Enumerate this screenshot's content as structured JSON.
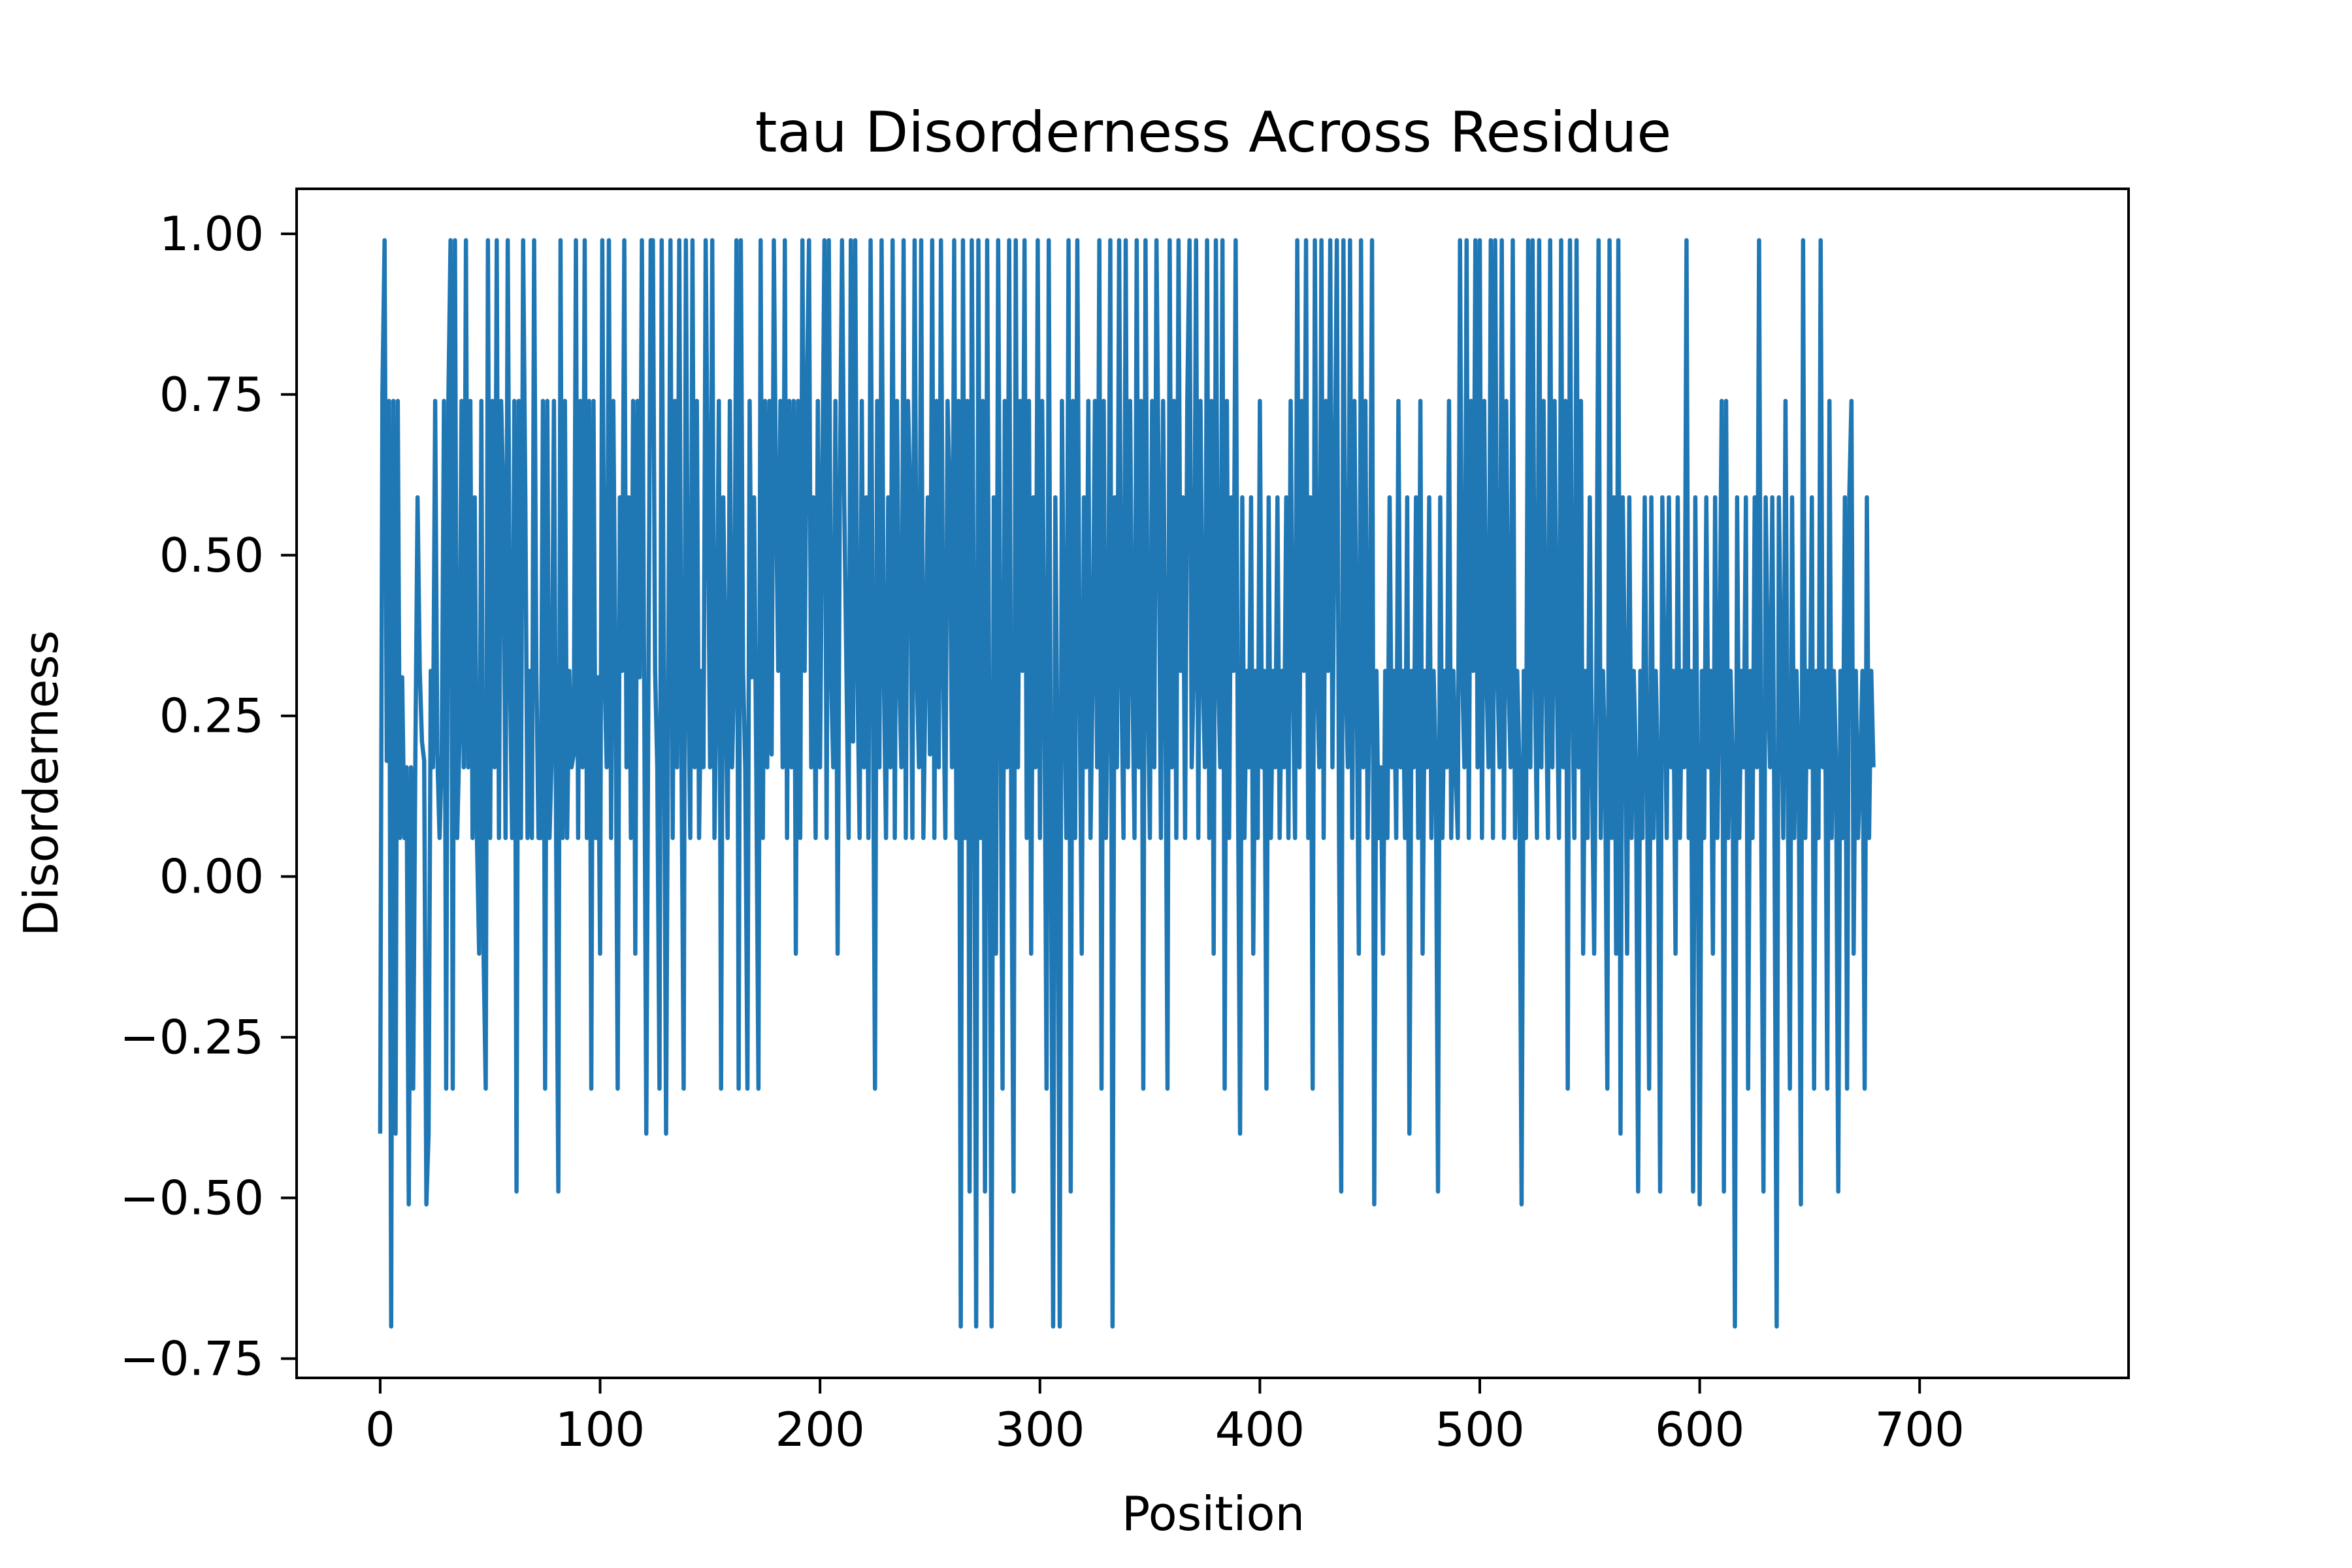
{
  "chart_data": {
    "type": "line",
    "title": "tau Disorderness Across Residue",
    "xlabel": "Position",
    "ylabel": "Disorderness",
    "xlim": [
      -38,
      795
    ],
    "ylim": [
      -0.78,
      1.07
    ],
    "xticks": [
      0,
      100,
      200,
      300,
      400,
      500,
      600,
      700
    ],
    "xtick_labels": [
      "0",
      "100",
      "200",
      "300",
      "400",
      "500",
      "600",
      "700"
    ],
    "yticks": [
      -0.75,
      -0.5,
      -0.25,
      0,
      0.25,
      0.5,
      0.75,
      1.0
    ],
    "ytick_labels": [
      "−0.75",
      "−0.50",
      "−0.25",
      "0.00",
      "0.25",
      "0.50",
      "0.75",
      "1.00"
    ],
    "grid": false,
    "legend": "none",
    "series_color": "#1f77b4",
    "series": [
      {
        "name": "",
        "x_start": 0,
        "x_step": 1,
        "values": [
          -0.4,
          0.75,
          0.99,
          0.18,
          0.74,
          -0.7,
          0.74,
          -0.4,
          0.74,
          0.06,
          0.31,
          0.06,
          0.17,
          -0.51,
          0.17,
          -0.33,
          0.19,
          0.59,
          0.32,
          0.21,
          0.18,
          -0.51,
          -0.4,
          0.32,
          0.17,
          0.74,
          0.19,
          0.06,
          0.19,
          0.74,
          -0.33,
          0.74,
          0.99,
          -0.33,
          0.99,
          0.06,
          0.21,
          0.74,
          0.17,
          0.99,
          0.17,
          0.74,
          0.06,
          0.59,
          0.06,
          -0.12,
          0.74,
          -0.12,
          -0.33,
          0.99,
          0.06,
          0.74,
          0.17,
          0.99,
          0.06,
          0.74,
          0.59,
          0.06,
          0.99,
          0.32,
          0.06,
          0.74,
          -0.49,
          0.74,
          0.06,
          0.99,
          0.59,
          0.06,
          0.32,
          0.06,
          0.99,
          0.32,
          0.06,
          0.06,
          0.74,
          -0.33,
          0.74,
          0.06,
          0.19,
          0.74,
          0.06,
          -0.49,
          0.99,
          0.06,
          0.74,
          0.06,
          0.32,
          0.17,
          0.19,
          0.99,
          0.06,
          0.74,
          0.17,
          0.99,
          0.06,
          0.74,
          -0.33,
          0.74,
          0.06,
          0.31,
          -0.12,
          0.99,
          0.32,
          0.17,
          0.99,
          0.06,
          0.74,
          0.32,
          -0.33,
          0.59,
          0.32,
          0.99,
          0.17,
          0.59,
          0.06,
          0.74,
          -0.12,
          0.74,
          0.31,
          0.99,
          0.32,
          -0.4,
          0.32,
          0.99,
          0.99,
          0.32,
          0.17,
          -0.33,
          0.99,
          0.32,
          -0.4,
          0.32,
          0.99,
          0.06,
          0.74,
          0.17,
          0.99,
          0.19,
          -0.33,
          0.99,
          0.32,
          0.06,
          0.99,
          0.17,
          0.74,
          0.06,
          0.32,
          0.17,
          0.99,
          0.59,
          0.17,
          0.99,
          0.06,
          0.32,
          0.74,
          -0.33,
          0.59,
          0.32,
          0.06,
          0.74,
          0.17,
          0.32,
          0.99,
          -0.33,
          0.99,
          0.32,
          0.17,
          -0.33,
          0.74,
          0.31,
          0.59,
          0.17,
          -0.33,
          0.99,
          0.06,
          0.74,
          0.17,
          0.74,
          0.19,
          0.99,
          0.59,
          0.32,
          0.74,
          0.17,
          0.99,
          0.06,
          0.74,
          0.17,
          0.74,
          -0.12,
          0.74,
          0.06,
          0.99,
          0.32,
          0.74,
          0.99,
          0.17,
          0.59,
          0.06,
          0.74,
          0.17,
          0.59,
          0.99,
          0.06,
          0.99,
          0.32,
          0.17,
          0.74,
          -0.12,
          0.59,
          0.99,
          0.59,
          0.32,
          0.06,
          0.99,
          0.21,
          0.99,
          0.32,
          0.06,
          0.74,
          0.17,
          0.59,
          0.06,
          0.99,
          0.32,
          -0.33,
          0.74,
          0.17,
          0.99,
          0.32,
          0.06,
          0.59,
          0.17,
          0.99,
          0.06,
          0.74,
          0.32,
          0.17,
          0.99,
          0.06,
          0.74,
          0.59,
          0.06,
          0.99,
          0.32,
          0.17,
          0.99,
          0.06,
          0.32,
          0.59,
          0.19,
          0.99,
          0.06,
          0.74,
          0.17,
          0.99,
          0.32,
          0.06,
          0.74,
          0.59,
          0.17,
          0.99,
          0.06,
          0.74,
          -0.7,
          0.99,
          0.06,
          0.74,
          -0.49,
          0.99,
          0.32,
          -0.7,
          0.99,
          0.06,
          0.74,
          -0.49,
          0.99,
          0.17,
          -0.7,
          0.59,
          -0.12,
          0.99,
          0.32,
          -0.33,
          0.74,
          0.17,
          0.99,
          0.06,
          -0.49,
          0.99,
          0.17,
          0.74,
          0.32,
          0.99,
          0.06,
          0.74,
          -0.12,
          0.59,
          0.17,
          0.99,
          0.06,
          0.74,
          0.32,
          -0.33,
          0.99,
          0.06,
          -0.7,
          0.59,
          0.17,
          -0.7,
          0.74,
          0.32,
          0.06,
          0.99,
          -0.49,
          0.74,
          0.06,
          0.99,
          0.32,
          -0.12,
          0.59,
          0.17,
          0.74,
          0.06,
          0.32,
          0.74,
          0.17,
          0.99,
          -0.33,
          0.74,
          0.06,
          0.32,
          0.99,
          -0.7,
          0.59,
          0.17,
          0.99,
          0.32,
          0.06,
          0.99,
          0.17,
          0.74,
          0.32,
          0.06,
          0.99,
          0.17,
          0.74,
          -0.33,
          0.99,
          0.32,
          0.06,
          0.74,
          0.17,
          0.99,
          0.59,
          0.06,
          0.74,
          0.32,
          -0.33,
          0.99,
          0.17,
          0.74,
          0.06,
          0.99,
          0.32,
          0.59,
          0.06,
          0.74,
          0.99,
          0.17,
          0.32,
          0.99,
          0.06,
          0.74,
          0.32,
          0.17,
          0.99,
          0.06,
          0.74,
          -0.12,
          0.99,
          0.32,
          0.17,
          0.99,
          -0.33,
          0.74,
          0.06,
          0.59,
          0.32,
          0.99,
          0.17,
          -0.4,
          0.59,
          0.06,
          0.32,
          0.17,
          0.59,
          -0.12,
          0.32,
          0.06,
          0.74,
          0.17,
          0.32,
          -0.33,
          0.59,
          0.06,
          0.32,
          0.17,
          0.59,
          0.06,
          0.32,
          0.17,
          0.59,
          0.06,
          0.74,
          0.32,
          0.06,
          0.99,
          0.17,
          0.74,
          0.32,
          0.99,
          0.06,
          0.59,
          -0.33,
          0.99,
          0.32,
          0.17,
          0.99,
          0.06,
          0.74,
          0.32,
          0.99,
          0.17,
          0.59,
          0.99,
          0.06,
          -0.49,
          0.99,
          0.32,
          0.17,
          0.99,
          0.06,
          0.74,
          0.32,
          -0.12,
          0.99,
          0.17,
          0.74,
          0.06,
          0.32,
          0.99,
          -0.51,
          0.32,
          0.06,
          0.17,
          -0.12,
          0.32,
          0.06,
          0.59,
          0.17,
          0.32,
          0.06,
          0.74,
          0.17,
          0.32,
          0.06,
          0.59,
          -0.4,
          0.32,
          0.17,
          0.59,
          0.06,
          0.74,
          -0.12,
          0.32,
          0.17,
          0.59,
          0.06,
          0.32,
          0.17,
          -0.49,
          0.59,
          0.06,
          0.32,
          0.17,
          0.74,
          0.06,
          0.32,
          0.17,
          0.06,
          0.99,
          0.32,
          0.17,
          0.99,
          0.06,
          0.74,
          0.32,
          0.99,
          0.17,
          0.99,
          0.06,
          0.74,
          0.32,
          0.17,
          0.99,
          0.06,
          0.99,
          0.32,
          0.17,
          0.99,
          0.06,
          0.74,
          0.32,
          0.17,
          0.99,
          0.06,
          0.32,
          0.17,
          -0.51,
          0.32,
          0.06,
          0.99,
          0.17,
          0.99,
          0.32,
          0.06,
          0.99,
          0.17,
          0.74,
          0.32,
          0.06,
          0.99,
          0.17,
          0.74,
          0.32,
          0.06,
          0.99,
          0.17,
          0.74,
          -0.33,
          0.99,
          0.32,
          0.06,
          0.99,
          0.17,
          0.74,
          -0.12,
          0.32,
          0.06,
          0.59,
          0.17,
          -0.12,
          0.32,
          0.99,
          0.06,
          0.32,
          0.17,
          -0.33,
          0.99,
          0.06,
          0.59,
          -0.12,
          0.99,
          -0.4,
          0.59,
          0.32,
          -0.12,
          0.59,
          0.06,
          0.32,
          0.17,
          -0.49,
          0.32,
          0.06,
          0.59,
          0.17,
          -0.33,
          0.59,
          0.06,
          0.32,
          0.17,
          -0.49,
          0.59,
          0.32,
          0.06,
          0.59,
          0.17,
          0.32,
          -0.12,
          0.59,
          0.06,
          0.32,
          0.17,
          0.99,
          0.06,
          0.32,
          -0.49,
          0.59,
          0.17,
          -0.51,
          0.32,
          0.06,
          0.59,
          0.17,
          0.32,
          -0.12,
          0.59,
          0.06,
          0.32,
          0.74,
          -0.49,
          0.74,
          0.06,
          0.32,
          0.17,
          -0.7,
          0.59,
          0.06,
          0.32,
          0.17,
          0.59,
          -0.33,
          0.32,
          0.06,
          0.59,
          0.17,
          0.99,
          0.06,
          -0.49,
          0.59,
          0.32,
          0.17,
          0.59,
          0.06,
          -0.7,
          0.59,
          0.32,
          0.06,
          0.74,
          0.17,
          -0.33,
          0.59,
          0.06,
          0.32,
          0.17,
          -0.51,
          0.99,
          0.06,
          0.32,
          0.17,
          0.59,
          -0.33,
          0.32,
          0.06,
          0.99,
          0.17,
          0.32,
          -0.33,
          0.74,
          0.06,
          0.32,
          0.17,
          -0.49,
          0.32,
          0.06,
          0.59,
          -0.33,
          0.59,
          0.74,
          -0.12,
          0.32,
          0.06,
          0.17,
          0.32,
          -0.33,
          0.59,
          0.06,
          0.32,
          0.17
        ]
      }
    ]
  }
}
